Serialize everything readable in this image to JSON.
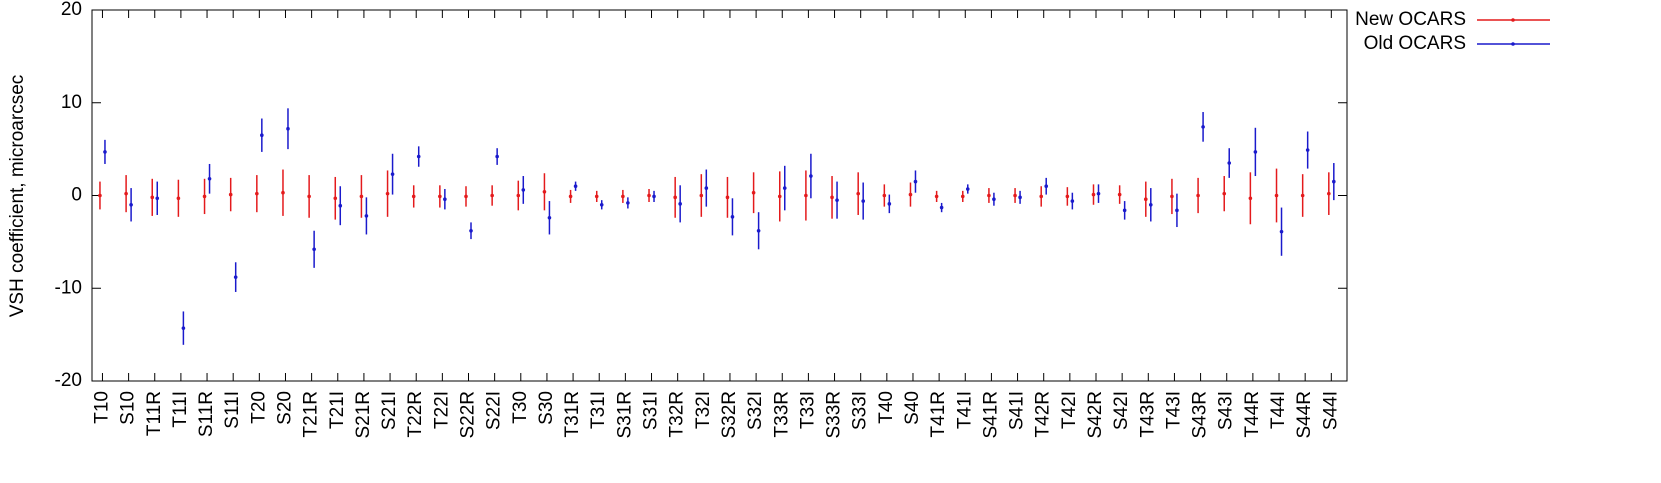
{
  "chart_data": {
    "type": "errorbar",
    "ylabel": "VSH coefficient, microarcsec",
    "categories": [
      "T10",
      "S10",
      "T11R",
      "T11I",
      "S11R",
      "S11I",
      "T20",
      "S20",
      "T21R",
      "T21I",
      "S21R",
      "S21I",
      "T22R",
      "T22I",
      "S22R",
      "S22I",
      "T30",
      "S30",
      "T31R",
      "T31I",
      "S31R",
      "S31I",
      "T32R",
      "T32I",
      "S32R",
      "S32I",
      "T33R",
      "T33I",
      "S33R",
      "S33I",
      "T40",
      "S40",
      "T41R",
      "T41I",
      "S41R",
      "S41I",
      "T42R",
      "T42I",
      "S42R",
      "S42I",
      "T43R",
      "T43I",
      "S43R",
      "S43I",
      "T44R",
      "T44I",
      "S44R",
      "S44I"
    ],
    "series": [
      {
        "name": "New OCARS",
        "color": "#e41a1c",
        "values": [
          0,
          0.2,
          -0.2,
          -0.3,
          -0.1,
          0.1,
          0.2,
          0.3,
          -0.1,
          -0.3,
          -0.1,
          0.2,
          -0.1,
          -0.1,
          -0.1,
          0,
          0,
          0.4,
          -0.1,
          -0.1,
          -0.1,
          0,
          -0.2,
          0,
          -0.2,
          0.3,
          -0.1,
          0,
          -0.2,
          0.2,
          0,
          0.1,
          -0.1,
          -0.1,
          0,
          0,
          -0.1,
          -0.1,
          0.1,
          0.1,
          -0.4,
          -0.1,
          0,
          0.2,
          -0.3,
          0,
          0,
          0.2
        ],
        "errors": [
          1.5,
          2,
          2,
          2,
          1.9,
          1.8,
          2,
          2.5,
          2.3,
          2.3,
          2.3,
          2.5,
          1.2,
          1.2,
          1.1,
          1.1,
          1.6,
          2,
          0.7,
          0.6,
          0.7,
          0.7,
          2.2,
          2.3,
          2.2,
          2.2,
          2.7,
          2.7,
          2.3,
          2.3,
          1.2,
          1.3,
          0.6,
          0.6,
          0.8,
          0.8,
          1.1,
          1,
          1.1,
          1,
          1.9,
          1.9,
          1.9,
          1.9,
          2.8,
          2.9,
          2.3,
          2.3
        ]
      },
      {
        "name": "Old OCARS",
        "color": "#1a1acc",
        "values": [
          4.7,
          -1,
          -0.3,
          -14.3,
          1.8,
          -8.8,
          6.5,
          7.2,
          -5.8,
          -1.1,
          -2.2,
          2.3,
          4.2,
          -0.4,
          -3.8,
          4.2,
          0.6,
          -2.4,
          1,
          -1,
          -0.8,
          -0.1,
          -0.9,
          0.8,
          -2.3,
          -3.8,
          0.8,
          2.1,
          -0.5,
          -0.6,
          -0.9,
          1.5,
          -1.3,
          0.7,
          -0.4,
          -0.2,
          1,
          -0.6,
          0.2,
          -1.6,
          -1,
          -1.6,
          7.4,
          3.5,
          4.7,
          -3.9,
          4.9,
          1.5
        ],
        "errors": [
          1.3,
          1.8,
          1.8,
          1.8,
          1.6,
          1.6,
          1.8,
          2.2,
          2,
          2.1,
          2,
          2.2,
          1.1,
          1.1,
          0.9,
          0.9,
          1.5,
          1.8,
          0.5,
          0.5,
          0.6,
          0.6,
          2,
          2,
          2,
          2,
          2.4,
          2.4,
          2,
          2,
          1,
          1.2,
          0.5,
          0.5,
          0.7,
          0.7,
          0.9,
          0.9,
          1,
          1,
          1.8,
          1.8,
          1.6,
          1.6,
          2.6,
          2.6,
          2,
          2
        ]
      }
    ],
    "ylim": [
      -20,
      20
    ],
    "yticks": [
      -20,
      -10,
      0,
      10,
      20
    ],
    "legend": "outside-top-right"
  }
}
